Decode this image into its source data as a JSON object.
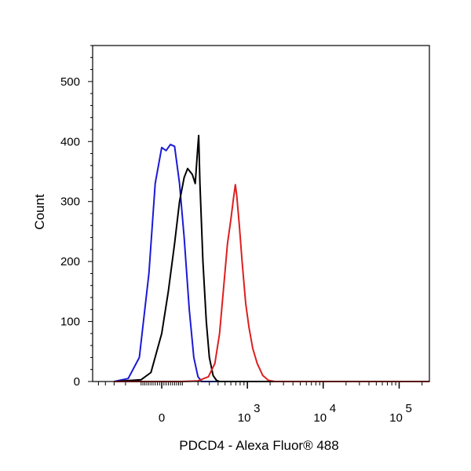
{
  "chart_data": {
    "type": "line",
    "xlabel": "PDCD4 - Alexa Fluor® 488",
    "ylabel": "Count",
    "xscale": "biexponential (linear near 0, log above)",
    "ylim": [
      0,
      560
    ],
    "grid": false,
    "legend": "none",
    "y_ticks": [
      0,
      100,
      200,
      300,
      400,
      500
    ],
    "y_tick_labels": [
      "0",
      "100",
      "200",
      "300",
      "400",
      "500"
    ],
    "x_ticks": [
      {
        "value": 0,
        "base": "0",
        "exp": ""
      },
      {
        "value": 1000,
        "base": "10",
        "exp": "3"
      },
      {
        "value": 10000,
        "base": "10",
        "exp": "4"
      },
      {
        "value": 100000,
        "base": "10",
        "exp": "5"
      }
    ],
    "series": [
      {
        "color": "#1a1ad6",
        "points": [
          [
            -300,
            0
          ],
          [
            -180,
            5
          ],
          [
            -110,
            40
          ],
          [
            -60,
            180
          ],
          [
            -30,
            330
          ],
          [
            0,
            390
          ],
          [
            20,
            385
          ],
          [
            40,
            395
          ],
          [
            60,
            392
          ],
          [
            85,
            330
          ],
          [
            110,
            240
          ],
          [
            140,
            120
          ],
          [
            170,
            40
          ],
          [
            200,
            8
          ],
          [
            230,
            0
          ],
          [
            300,
            0
          ],
          [
            600,
            0
          ],
          [
            2000,
            0
          ],
          [
            10000,
            0
          ],
          [
            100000,
            0
          ],
          [
            250000,
            0
          ]
        ]
      },
      {
        "color": "#000000",
        "points": [
          [
            -300,
            0
          ],
          [
            -100,
            3
          ],
          [
            -50,
            15
          ],
          [
            0,
            80
          ],
          [
            30,
            150
          ],
          [
            60,
            230
          ],
          [
            85,
            300
          ],
          [
            110,
            340
          ],
          [
            130,
            355
          ],
          [
            160,
            345
          ],
          [
            180,
            330
          ],
          [
            200,
            395
          ],
          [
            205,
            410
          ],
          [
            215,
            330
          ],
          [
            240,
            200
          ],
          [
            270,
            100
          ],
          [
            300,
            40
          ],
          [
            340,
            10
          ],
          [
            380,
            2
          ],
          [
            420,
            0
          ],
          [
            800,
            0
          ],
          [
            2000,
            0
          ],
          [
            10000,
            0
          ],
          [
            100000,
            0
          ],
          [
            250000,
            0
          ]
        ]
      },
      {
        "color": "#dd1f1f",
        "points": [
          [
            -300,
            0
          ],
          [
            100,
            0
          ],
          [
            200,
            1
          ],
          [
            290,
            8
          ],
          [
            360,
            30
          ],
          [
            420,
            80
          ],
          [
            480,
            160
          ],
          [
            540,
            230
          ],
          [
            600,
            270
          ],
          [
            650,
            305
          ],
          [
            690,
            328
          ],
          [
            720,
            310
          ],
          [
            780,
            260
          ],
          [
            850,
            200
          ],
          [
            950,
            130
          ],
          [
            1050,
            90
          ],
          [
            1180,
            55
          ],
          [
            1350,
            30
          ],
          [
            1600,
            10
          ],
          [
            1900,
            2
          ],
          [
            2300,
            0
          ],
          [
            5000,
            0
          ],
          [
            20000,
            0
          ],
          [
            100000,
            0
          ],
          [
            250000,
            0
          ]
        ]
      }
    ]
  }
}
